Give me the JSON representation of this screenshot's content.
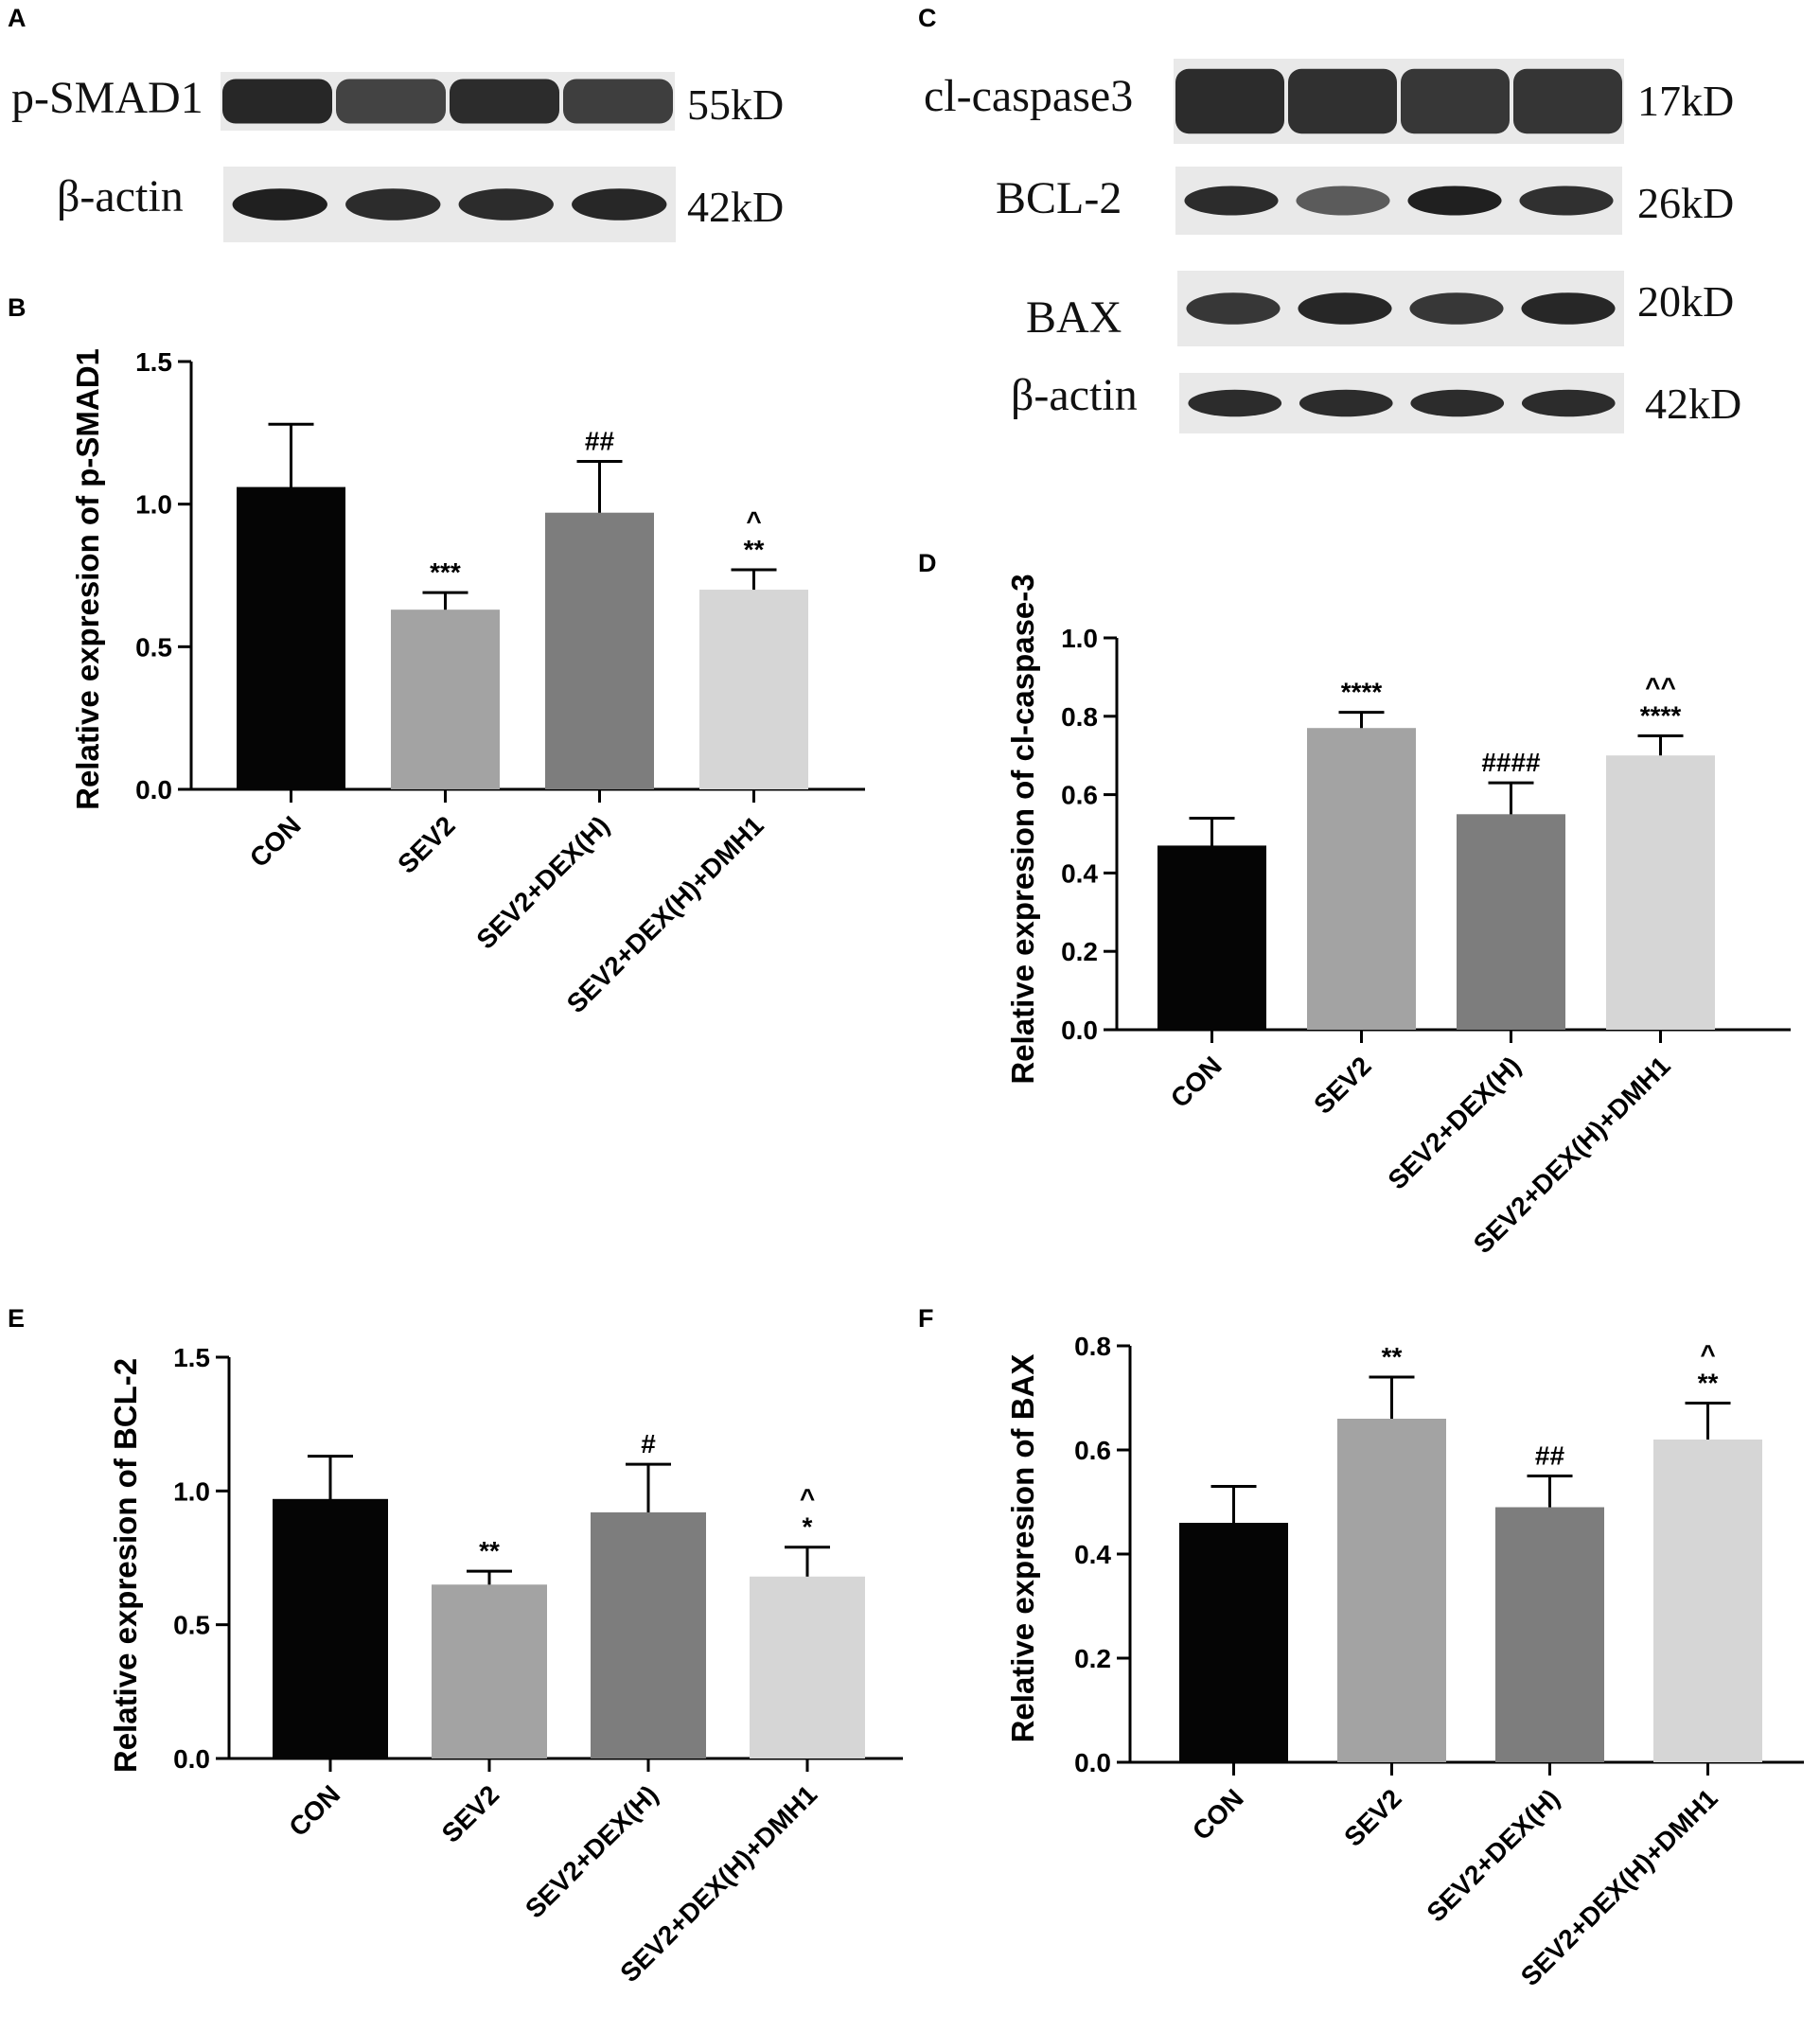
{
  "panels": {
    "A": "A",
    "B": "B",
    "C": "C",
    "D": "D",
    "E": "E",
    "F": "F"
  },
  "blots_A": [
    {
      "label": "p-SMAD1",
      "kd": "55kD",
      "fill_strength": [
        0.92,
        0.8,
        0.9,
        0.82
      ],
      "band_style": "smear"
    },
    {
      "label": "β-actin",
      "kd": "42kD",
      "fill_strength": [
        0.95,
        0.9,
        0.9,
        0.92
      ],
      "band_style": "band"
    }
  ],
  "blots_C": [
    {
      "label": "cl-caspase3",
      "kd": "17kD",
      "fill_strength": [
        0.9,
        0.88,
        0.85,
        0.86
      ],
      "band_style": "smear"
    },
    {
      "label": "BCL-2",
      "kd": "26kD",
      "fill_strength": [
        0.9,
        0.7,
        0.95,
        0.88
      ],
      "band_style": "band"
    },
    {
      "label": "BAX",
      "kd": "20kD",
      "fill_strength": [
        0.85,
        0.92,
        0.85,
        0.92
      ],
      "band_style": "band"
    },
    {
      "label": "β-actin",
      "kd": "42kD",
      "fill_strength": [
        0.9,
        0.9,
        0.9,
        0.9
      ],
      "band_style": "band"
    }
  ],
  "colors": {
    "CON": "#050505",
    "SEV2": "#a3a3a3",
    "SEV2+DEX(H)": "#7d7d7d",
    "SEV2+DEX(H)+DMH1": "#d6d6d6"
  },
  "chart_data": [
    {
      "id": "B",
      "type": "bar",
      "categories": [
        "CON",
        "SEV2",
        "SEV2+DEX(H)",
        "SEV2+DEX(H)+DMH1"
      ],
      "values": [
        1.06,
        0.63,
        0.97,
        0.7
      ],
      "errors": [
        0.22,
        0.06,
        0.18,
        0.07
      ],
      "significance": [
        [],
        [
          "***"
        ],
        [
          "##"
        ],
        [
          "^",
          "**"
        ]
      ],
      "ylabel": "Relative expresion of p-SMAD1",
      "ylim": [
        0,
        1.5
      ],
      "yticks": [
        "0.0",
        "0.5",
        "1.0",
        "1.5"
      ],
      "ytick_values": [
        0,
        0.5,
        1.0,
        1.5
      ]
    },
    {
      "id": "D",
      "type": "bar",
      "categories": [
        "CON",
        "SEV2",
        "SEV2+DEX(H)",
        "SEV2+DEX(H)+DMH1"
      ],
      "values": [
        0.47,
        0.77,
        0.55,
        0.7
      ],
      "errors": [
        0.07,
        0.04,
        0.08,
        0.05
      ],
      "significance": [
        [],
        [
          "****"
        ],
        [
          "####"
        ],
        [
          "^^",
          "****"
        ]
      ],
      "ylabel": "Relative expresion of cl-caspase-3",
      "ylim": [
        0,
        1.0
      ],
      "yticks": [
        "0.0",
        "0.2",
        "0.4",
        "0.6",
        "0.8",
        "1.0"
      ],
      "ytick_values": [
        0,
        0.2,
        0.4,
        0.6,
        0.8,
        1.0
      ]
    },
    {
      "id": "E",
      "type": "bar",
      "categories": [
        "CON",
        "SEV2",
        "SEV2+DEX(H)",
        "SEV2+DEX(H)+DMH1"
      ],
      "values": [
        0.97,
        0.65,
        0.92,
        0.68
      ],
      "errors": [
        0.16,
        0.05,
        0.18,
        0.11
      ],
      "significance": [
        [],
        [
          "**"
        ],
        [
          "#"
        ],
        [
          "^",
          "*"
        ]
      ],
      "ylabel": "Relative expresion of BCL-2",
      "ylim": [
        0,
        1.5
      ],
      "yticks": [
        "0.0",
        "0.5",
        "1.0",
        "1.5"
      ],
      "ytick_values": [
        0,
        0.5,
        1.0,
        1.5
      ]
    },
    {
      "id": "F",
      "type": "bar",
      "categories": [
        "CON",
        "SEV2",
        "SEV2+DEX(H)",
        "SEV2+DEX(H)+DMH1"
      ],
      "values": [
        0.46,
        0.66,
        0.49,
        0.62
      ],
      "errors": [
        0.07,
        0.08,
        0.06,
        0.07
      ],
      "significance": [
        [],
        [
          "**"
        ],
        [
          "##"
        ],
        [
          "^",
          "**"
        ]
      ],
      "ylabel": "Relative expresion of BAX",
      "ylim": [
        0,
        0.8
      ],
      "yticks": [
        "0.0",
        "0.2",
        "0.4",
        "0.6",
        "0.8"
      ],
      "ytick_values": [
        0,
        0.2,
        0.4,
        0.6,
        0.8
      ]
    }
  ]
}
